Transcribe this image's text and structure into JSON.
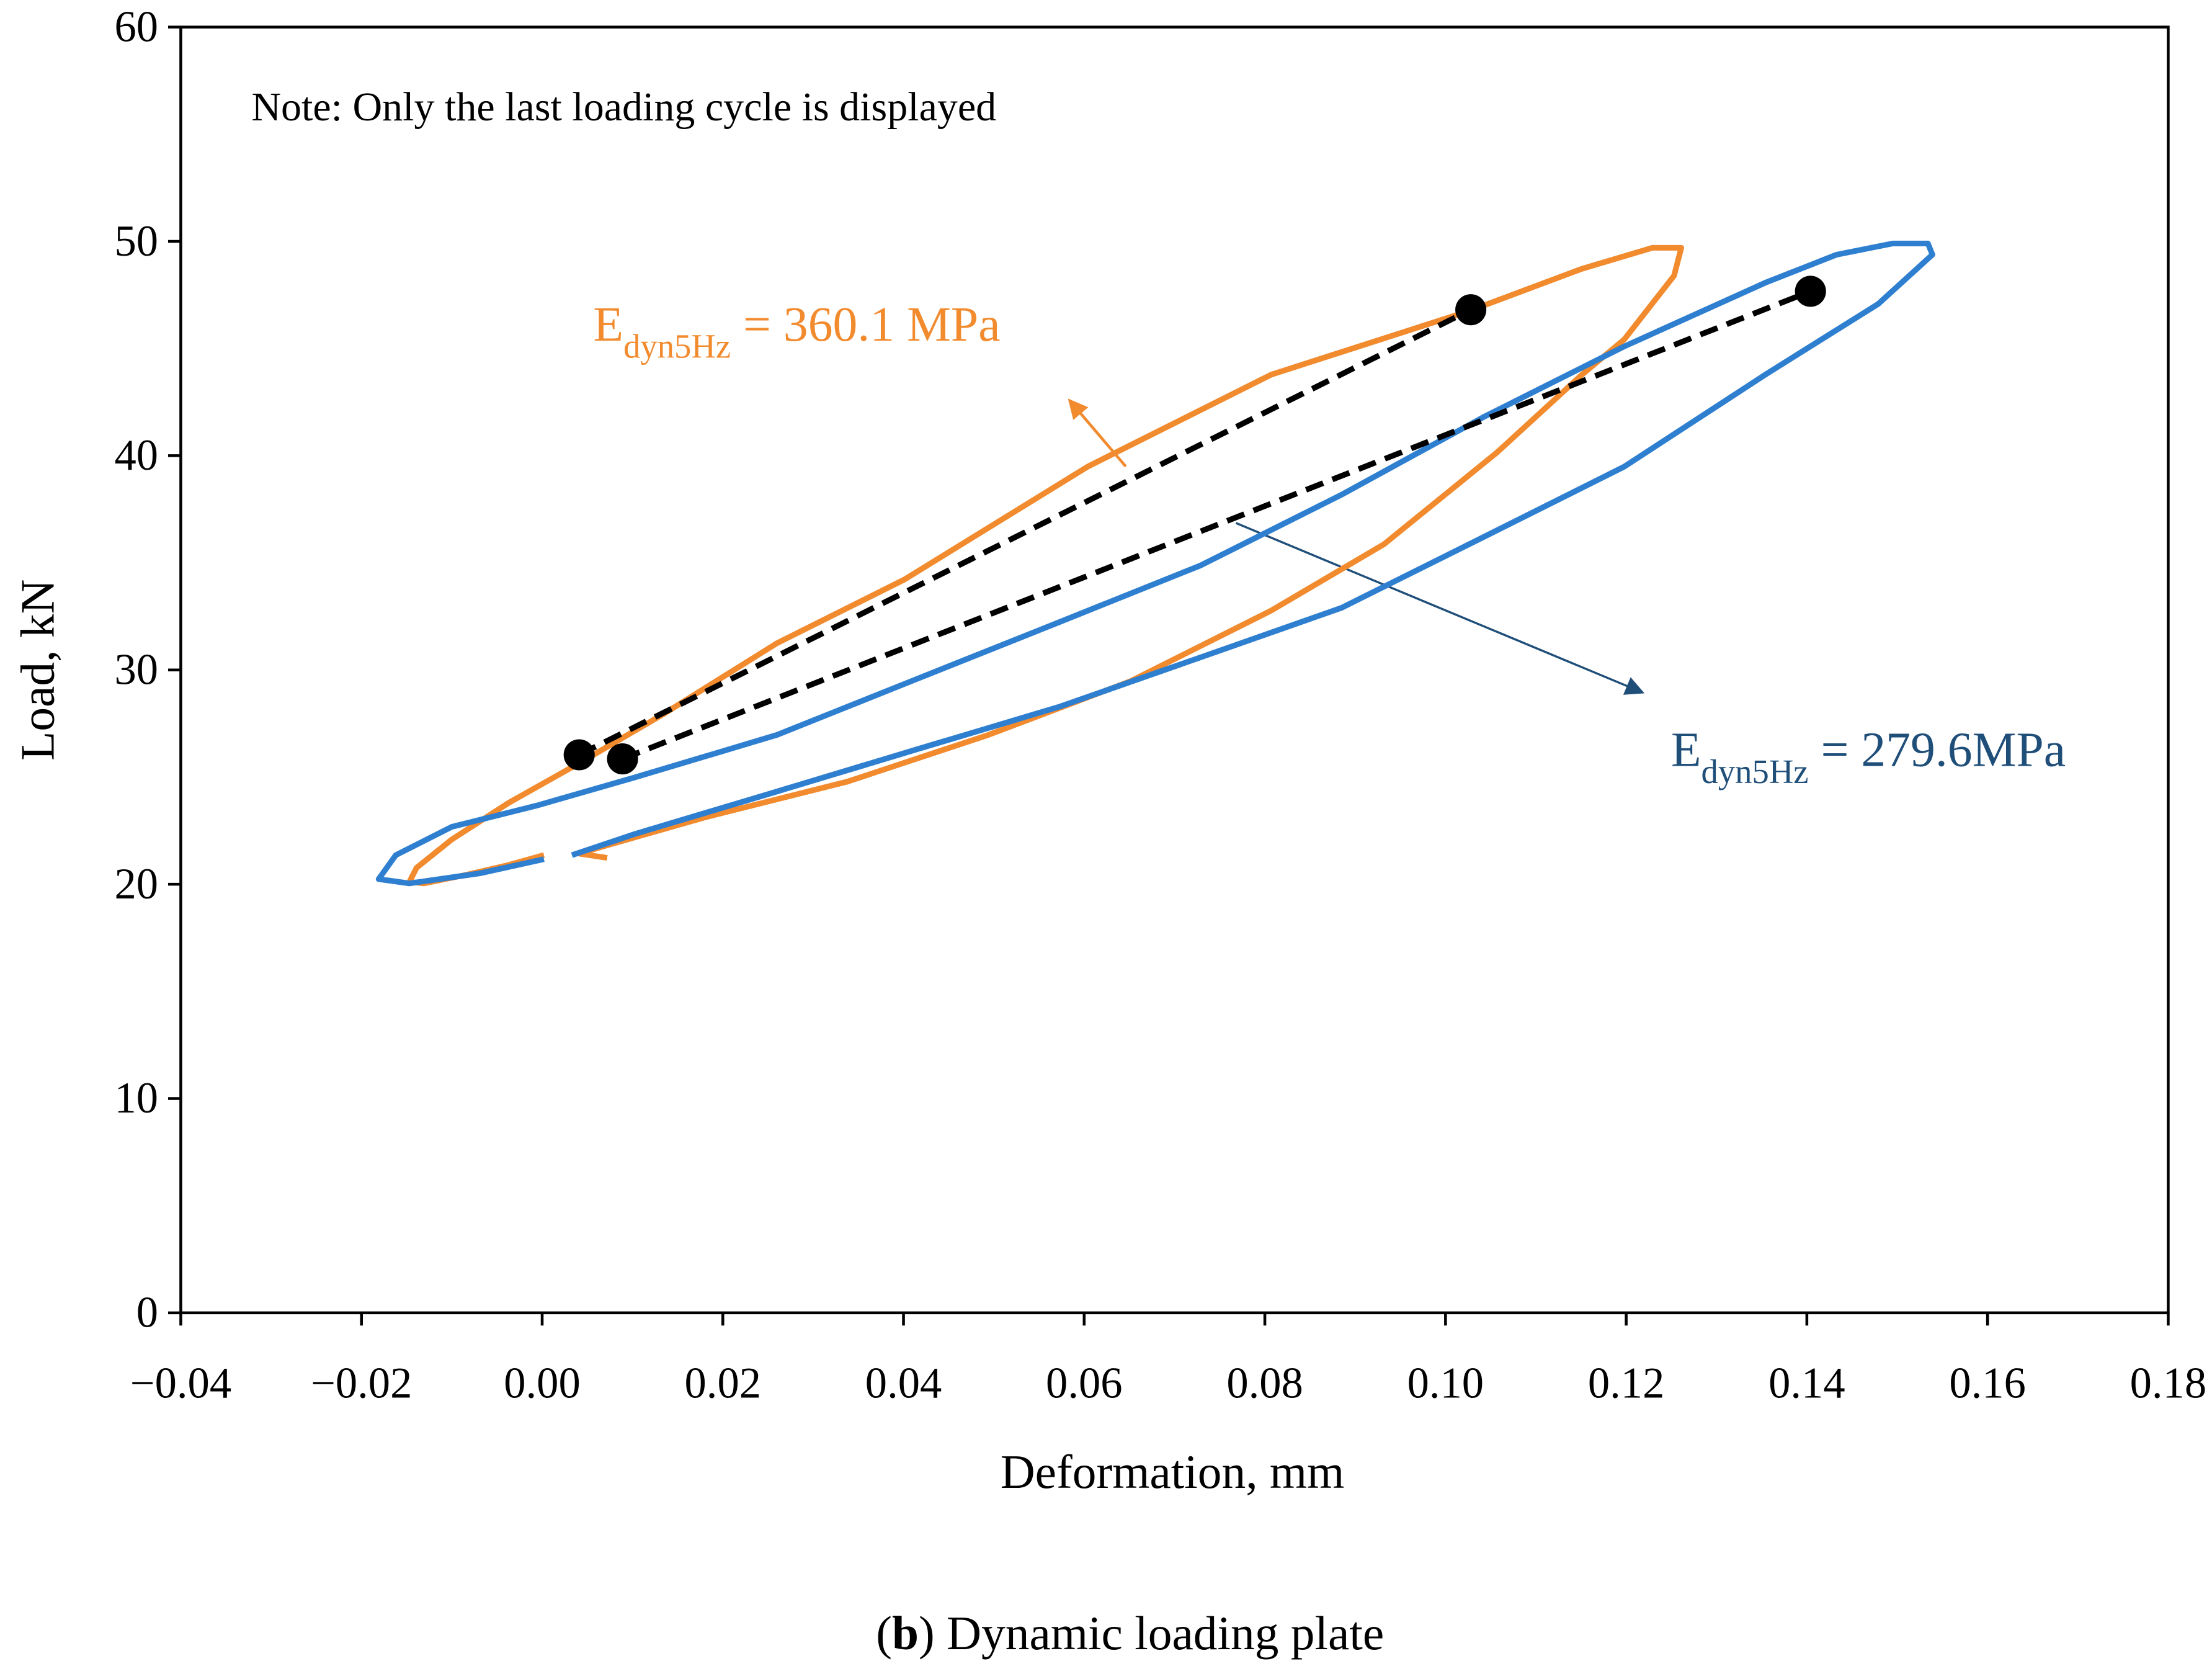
{
  "chart_data": {
    "type": "line",
    "xlabel": "Deformation, mm",
    "ylabel": "Load, kN",
    "xlim": [
      -0.04,
      0.18
    ],
    "ylim": [
      0,
      60
    ],
    "xticks": [
      {
        "value": -0.04,
        "label": "−0.04"
      },
      {
        "value": -0.02,
        "label": "−0.02"
      },
      {
        "value": 0,
        "label": "0.00"
      },
      {
        "value": 0.02,
        "label": "0.02"
      },
      {
        "value": 0.04,
        "label": "0.04"
      },
      {
        "value": 0.06,
        "label": "0.06"
      },
      {
        "value": 0.08,
        "label": "0.08"
      },
      {
        "value": 0.1,
        "label": "0.10"
      },
      {
        "value": 0.12,
        "label": "0.12"
      },
      {
        "value": 0.14,
        "label": "0.14"
      },
      {
        "value": 0.16,
        "label": "0.16"
      },
      {
        "value": 0.18,
        "label": "0.18"
      }
    ],
    "yticks": [
      0,
      10,
      20,
      30,
      40,
      50,
      60
    ],
    "note": "Note: Only the last loading cycle is displayed",
    "series": [
      {
        "color": "#f28a2e",
        "x": [
          0.0002,
          -0.0037,
          -0.0084,
          -0.0131,
          -0.0147,
          -0.0139,
          -0.01,
          -0.0037,
          0.0041,
          0.0135,
          0.026,
          0.0401,
          0.0604,
          0.0807,
          0.1026,
          0.1151,
          0.1229,
          0.1261,
          0.1253,
          0.1198,
          0.1151,
          0.1057,
          0.0932,
          0.0807,
          0.0651,
          0.0494,
          0.0338,
          0.0182,
          0.0072,
          0.0041,
          0.0072
        ],
        "values": [
          21.36,
          20.9,
          20.44,
          20.04,
          20.11,
          20.77,
          22.09,
          23.8,
          25.65,
          27.96,
          31.25,
          34.22,
          39.49,
          43.78,
          46.75,
          48.72,
          49.7,
          49.7,
          48.4,
          45.43,
          43.78,
          40.15,
          35.87,
          32.77,
          29.47,
          26.97,
          24.79,
          23.14,
          21.82,
          21.43,
          21.23
        ]
      },
      {
        "color": "#2f7fd0",
        "x": [
          0.0033,
          0.0103,
          0.026,
          0.0416,
          0.0573,
          0.0729,
          0.0885,
          0.1042,
          0.1198,
          0.1354,
          0.1479,
          0.1539,
          0.1534,
          0.1495,
          0.1433,
          0.1354,
          0.1198,
          0.1042,
          0.0885,
          0.0729,
          0.0573,
          0.0416,
          0.026,
          0.0103,
          -0.0006,
          -0.01,
          -0.0162,
          -0.0181,
          -0.0147,
          -0.0069,
          0.0002
        ],
        "values": [
          21.36,
          22.35,
          24.33,
          26.31,
          28.29,
          30.59,
          32.9,
          36.2,
          39.49,
          43.78,
          47.08,
          49.38,
          49.9,
          49.9,
          49.38,
          48.07,
          45.1,
          41.8,
          38.18,
          34.88,
          32.24,
          29.6,
          26.97,
          24.99,
          23.67,
          22.68,
          21.36,
          20.24,
          20.04,
          20.51,
          21.17
        ]
      },
      {
        "color": "#000000",
        "dashed": true,
        "markers": true,
        "x": [
          0.0041,
          0.1028
        ],
        "values": [
          26.04,
          46.81
        ]
      },
      {
        "color": "#000000",
        "dashed": true,
        "markers": true,
        "x": [
          0.0089,
          0.1404
        ],
        "values": [
          25.85,
          47.67
        ]
      }
    ],
    "annotations": [
      {
        "symbol": "E",
        "sub": "dyn5Hz",
        "text": " = 360.1 MPa",
        "color": "#f28a2e"
      },
      {
        "symbol": "E",
        "sub": "dyn5Hz",
        "text": " = 279.6MPa",
        "color": "#1f4e79"
      }
    ]
  },
  "caption": {
    "open": "(",
    "bold": "b",
    "rest": ") Dynamic loading plate"
  }
}
